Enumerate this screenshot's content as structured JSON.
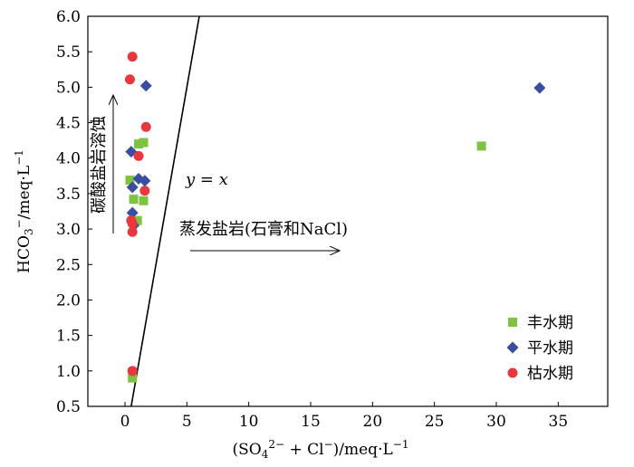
{
  "chart_data": {
    "type": "scatter",
    "xlabel": "(SO4²⁻ + Cl⁻)/meq·L⁻¹",
    "ylabel": "HCO3⁻/meq·L⁻¹",
    "xlim": [
      -3,
      39
    ],
    "ylim": [
      0.5,
      6.0
    ],
    "x_ticks": [
      0,
      5,
      10,
      15,
      20,
      25,
      30,
      35
    ],
    "y_ticks": [
      0.5,
      1.0,
      1.5,
      2.0,
      2.5,
      3.0,
      3.5,
      4.0,
      4.5,
      5.0,
      5.5,
      6.0
    ],
    "y_tick_labels": [
      "0.5",
      "1.0",
      "1.5",
      "2.0",
      "2.5",
      "3.0",
      "3.5",
      "4.0",
      "4.5",
      "5.0",
      "5.5",
      "6.0"
    ],
    "grid": false,
    "legend_position": "bottom-right",
    "series": [
      {
        "name": "丰水期",
        "marker": "square",
        "color": "#7ec242",
        "points": [
          [
            0.4,
            3.69
          ],
          [
            0.7,
            3.42
          ],
          [
            1.0,
            3.12
          ],
          [
            1.1,
            4.2
          ],
          [
            1.5,
            4.22
          ],
          [
            1.5,
            3.4
          ],
          [
            0.6,
            0.9
          ],
          [
            28.8,
            4.17
          ]
        ]
      },
      {
        "name": "平水期",
        "marker": "diamond",
        "color": "#3a4da0",
        "points": [
          [
            0.5,
            4.09
          ],
          [
            0.6,
            3.59
          ],
          [
            1.1,
            3.71
          ],
          [
            1.6,
            3.68
          ],
          [
            0.6,
            3.23
          ],
          [
            0.7,
            3.05
          ],
          [
            1.7,
            5.02
          ],
          [
            33.5,
            4.99
          ]
        ]
      },
      {
        "name": "枯水期",
        "marker": "circle",
        "color": "#e8383d",
        "points": [
          [
            0.4,
            5.11
          ],
          [
            0.6,
            5.43
          ],
          [
            1.7,
            4.44
          ],
          [
            1.1,
            4.03
          ],
          [
            1.6,
            3.54
          ],
          [
            0.5,
            3.12
          ],
          [
            0.6,
            3.08
          ],
          [
            0.6,
            2.96
          ],
          [
            0.6,
            1.0
          ]
        ]
      }
    ],
    "reference_line": {
      "label_var": "y",
      "label_eq": " = ",
      "label_var2": "x",
      "x": [
        0.5,
        6.0
      ],
      "y": [
        0.5,
        6.0
      ]
    },
    "annotations": {
      "carbonate": "碳酸盐岩溶蚀",
      "evaporite": "蒸发盐岩(石膏和NaCl)"
    }
  }
}
